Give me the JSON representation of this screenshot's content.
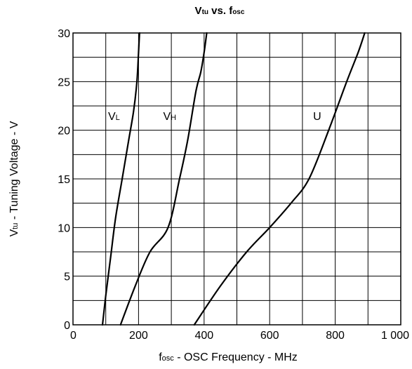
{
  "chart_data": {
    "type": "line",
    "title": {
      "prefix": "V",
      "prefix_sub": "tu",
      "middle": " vs. f",
      "suffix_sub": "osc"
    },
    "xlabel": {
      "prefix": "f",
      "prefix_sub": "osc",
      "text": " -  OSC Frequency  - MHz"
    },
    "ylabel": {
      "prefix": "V",
      "prefix_sub": "tu",
      "text": " -  Tuning Voltage  - V"
    },
    "xlim": [
      0,
      1000
    ],
    "ylim": [
      0,
      30
    ],
    "x_major_ticks": [
      0,
      200,
      400,
      600,
      800,
      1000
    ],
    "x_tick_labels": [
      "0",
      "200",
      "400",
      "600",
      "800",
      "1 000"
    ],
    "y_major_ticks": [
      0,
      5,
      10,
      15,
      20,
      25,
      30
    ],
    "y_tick_labels": [
      "0",
      "5",
      "10",
      "15",
      "20",
      "25",
      "30"
    ],
    "x_grid_step": 100,
    "y_grid_step": 2.5,
    "grid": true,
    "line_color": "#000000",
    "series": [
      {
        "name": "VL",
        "label_main": "V",
        "label_sub": "L",
        "label_at": [
          125,
          21.5
        ],
        "points": [
          [
            90,
            0
          ],
          [
            100,
            3
          ],
          [
            115,
            7
          ],
          [
            130,
            11
          ],
          [
            150,
            15
          ],
          [
            170,
            19
          ],
          [
            185,
            22
          ],
          [
            195,
            25
          ],
          [
            200,
            28
          ],
          [
            203,
            30
          ]
        ]
      },
      {
        "name": "VH",
        "label_main": "V",
        "label_sub": "H",
        "label_at": [
          295,
          21.5
        ],
        "points": [
          [
            145,
            0
          ],
          [
            190,
            4
          ],
          [
            235,
            7.5
          ],
          [
            290,
            10
          ],
          [
            325,
            15
          ],
          [
            350,
            19
          ],
          [
            375,
            24
          ],
          [
            390,
            26
          ],
          [
            400,
            28
          ],
          [
            408,
            30
          ]
        ]
      },
      {
        "name": "U",
        "label_main": "U",
        "label_sub": "",
        "label_at": [
          745,
          21.5
        ],
        "points": [
          [
            370,
            0
          ],
          [
            450,
            4
          ],
          [
            530,
            7.5
          ],
          [
            600,
            10
          ],
          [
            665,
            12.5
          ],
          [
            720,
            15
          ],
          [
            780,
            20
          ],
          [
            835,
            25
          ],
          [
            870,
            28
          ],
          [
            890,
            30
          ]
        ]
      }
    ]
  }
}
